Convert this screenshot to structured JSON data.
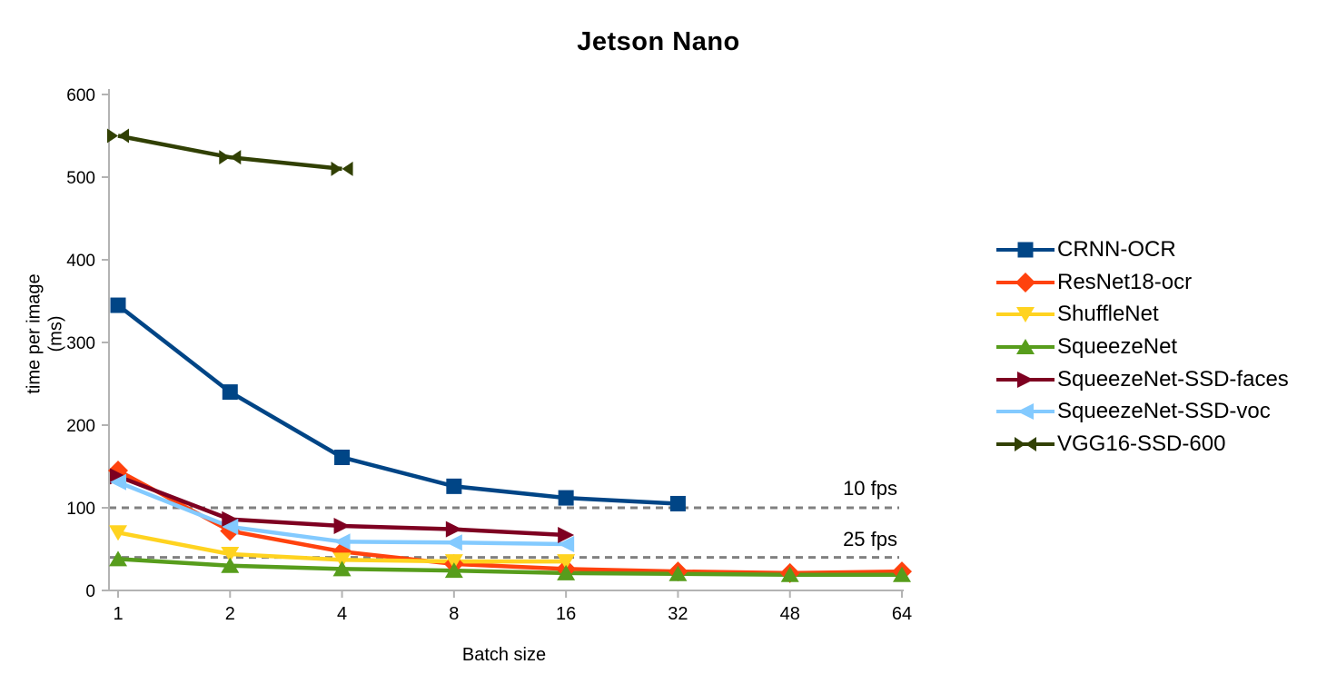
{
  "chart_data": {
    "type": "line",
    "title": "Jetson Nano",
    "xlabel": "Batch size",
    "ylabel": "time per image (ms)",
    "ylabel_lines": [
      "time per image",
      "(ms)"
    ],
    "categories": [
      "1",
      "2",
      "4",
      "8",
      "16",
      "32",
      "48",
      "64"
    ],
    "y_ticks": [
      0,
      100,
      200,
      300,
      400,
      500,
      600
    ],
    "ylim": [
      0,
      600
    ],
    "grid": false,
    "legend_position": "right",
    "axis_color": "#b3b3b3",
    "text_color": "#000000",
    "series": [
      {
        "name": "CRNN-OCR",
        "color": "#004586",
        "marker": "square",
        "values": [
          345,
          240,
          161,
          126,
          112,
          105,
          null,
          null
        ]
      },
      {
        "name": "ResNet18-ocr",
        "color": "#ff420e",
        "marker": "diamond",
        "values": [
          145,
          72,
          47,
          32,
          26,
          23,
          21,
          23
        ]
      },
      {
        "name": "ShuffleNet",
        "color": "#ffd320",
        "marker": "triangle-down",
        "values": [
          70,
          44,
          37,
          35,
          35,
          null,
          null,
          null
        ]
      },
      {
        "name": "SqueezeNet",
        "color": "#579d1c",
        "marker": "triangle-up",
        "values": [
          38,
          30,
          26,
          24,
          21,
          20,
          19,
          19
        ]
      },
      {
        "name": "SqueezeNet-SSD-faces",
        "color": "#7e0021",
        "marker": "triangle-right",
        "values": [
          138,
          86,
          78,
          74,
          67,
          null,
          null,
          null
        ]
      },
      {
        "name": "SqueezeNet-SSD-voc",
        "color": "#83caff",
        "marker": "triangle-left",
        "values": [
          131,
          77,
          59,
          58,
          56,
          null,
          null,
          null
        ]
      },
      {
        "name": "VGG16-SSD-600",
        "color": "#314004",
        "marker": "bowtie",
        "values": [
          550,
          524,
          510,
          null,
          null,
          null,
          null,
          null
        ]
      }
    ],
    "ref_lines": [
      {
        "label": "10 fps",
        "value": 100,
        "color": "#808080",
        "style": "dashed"
      },
      {
        "label": "25 fps",
        "value": 40,
        "color": "#808080",
        "style": "dashed"
      }
    ]
  }
}
